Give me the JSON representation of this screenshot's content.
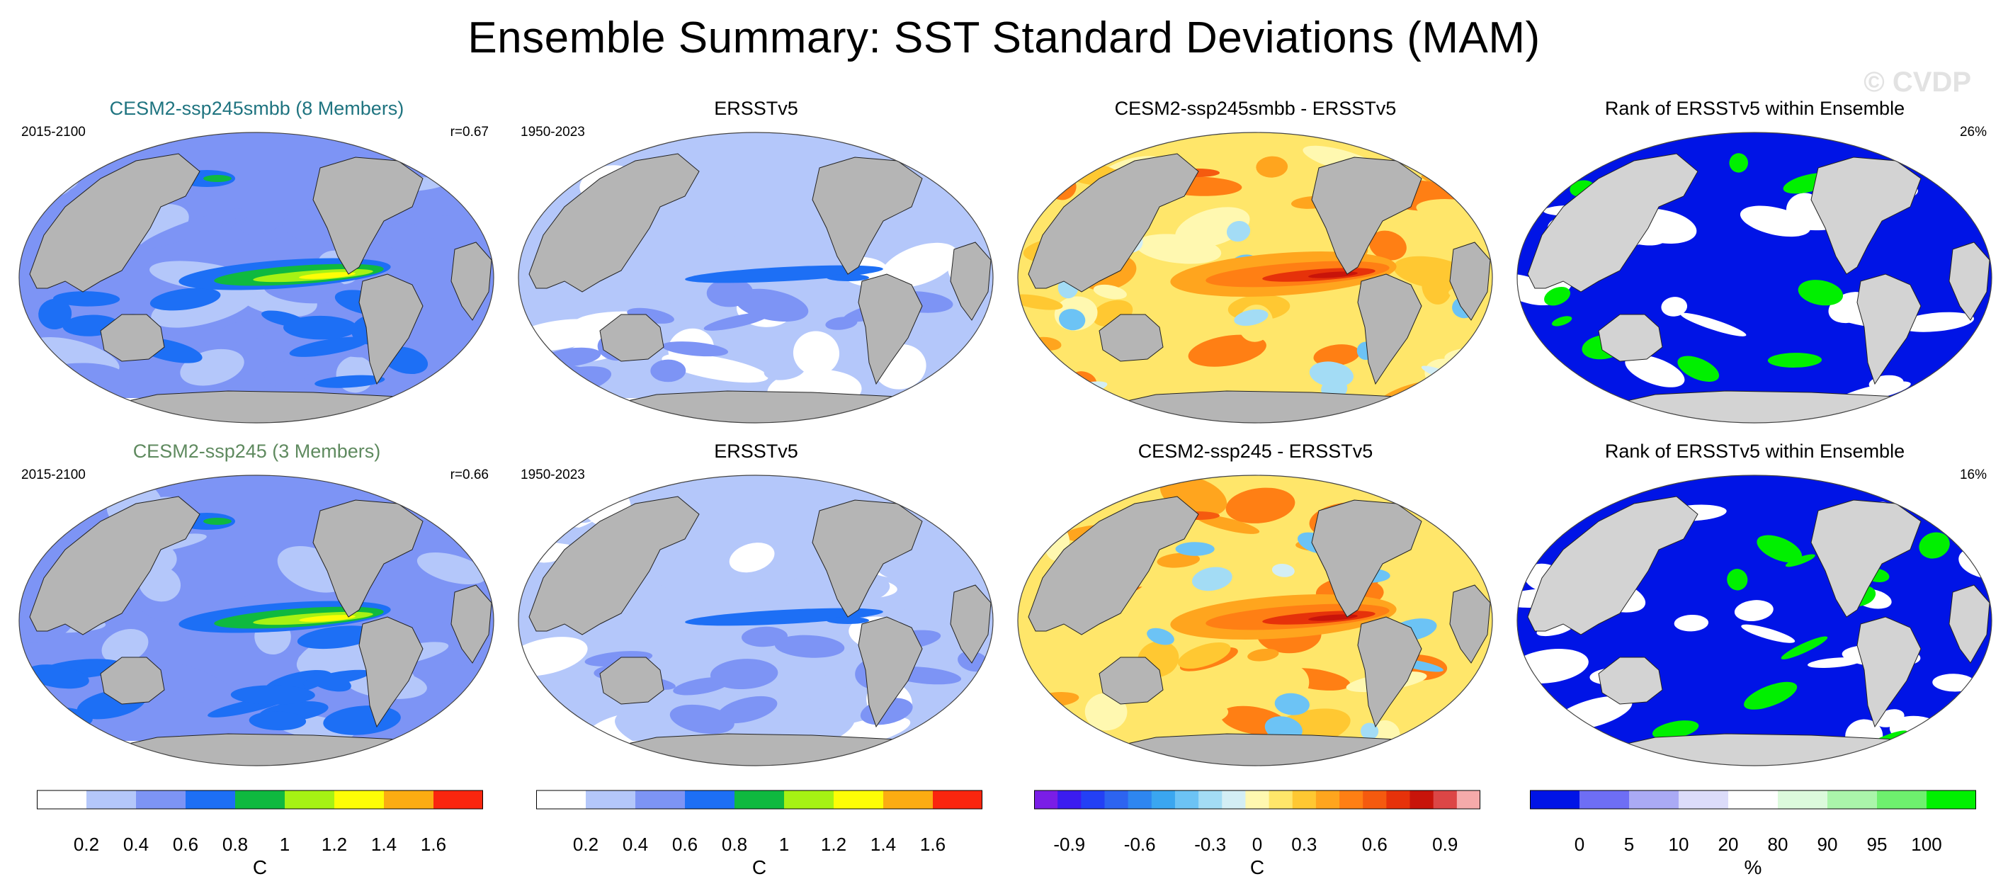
{
  "title": "Ensemble Summary: SST Standard Deviations (MAM)",
  "watermark": "© CVDP",
  "colors": {
    "land": "#b5b5b5",
    "land_light": "#d3d3d3",
    "ocean_default": "#7d94f5",
    "ensemble1_title": "#1f7480",
    "ensemble2_title": "#5f8a5f"
  },
  "rows": [
    {
      "panels": [
        {
          "title": "CESM2-ssp245smbb (8 Members)",
          "left": "2015-2100",
          "right": "r=0.67",
          "kind": "std",
          "variant": "model"
        },
        {
          "title": "ERSSTv5",
          "left": "1950-2023",
          "right": "",
          "kind": "std",
          "variant": "obs"
        },
        {
          "title": "CESM2-ssp245smbb - ERSSTv5",
          "left": "",
          "right": "",
          "kind": "diff",
          "variant": "diff"
        },
        {
          "title": "Rank of ERSSTv5 within Ensemble",
          "left": "",
          "right": "26%",
          "kind": "rank",
          "variant": "rank"
        }
      ]
    },
    {
      "panels": [
        {
          "title": "CESM2-ssp245 (3 Members)",
          "left": "2015-2100",
          "right": "r=0.66",
          "kind": "std",
          "variant": "model"
        },
        {
          "title": "ERSSTv5",
          "left": "1950-2023",
          "right": "",
          "kind": "std",
          "variant": "obs"
        },
        {
          "title": "CESM2-ssp245 - ERSSTv5",
          "left": "",
          "right": "",
          "kind": "diff",
          "variant": "diff"
        },
        {
          "title": "Rank of ERSSTv5 within Ensemble",
          "left": "",
          "right": "16%",
          "kind": "rank",
          "variant": "rank"
        }
      ]
    }
  ],
  "colorbars": [
    {
      "unit": "C",
      "labels": [
        "0.2",
        "0.4",
        "0.6",
        "0.8",
        "1",
        "1.2",
        "1.4",
        "1.6"
      ],
      "colors": [
        "#ffffff",
        "#b4c7fa",
        "#7d94f5",
        "#1d6ff5",
        "#0fb93f",
        "#a6f214",
        "#fdfd06",
        "#fbac12",
        "#fa260e"
      ]
    },
    {
      "unit": "C",
      "labels": [
        "0.2",
        "0.4",
        "0.6",
        "0.8",
        "1",
        "1.2",
        "1.4",
        "1.6"
      ],
      "colors": [
        "#ffffff",
        "#b4c7fa",
        "#7d94f5",
        "#1d6ff5",
        "#0fb93f",
        "#a6f214",
        "#fdfd06",
        "#fbac12",
        "#fa260e"
      ]
    },
    {
      "unit": "C",
      "labels": [
        "-0.9",
        "-0.6",
        "-0.3",
        "0",
        "0.3",
        "0.6",
        "0.9"
      ],
      "colors": [
        "#7a1ee6",
        "#3b1cf0",
        "#2340f5",
        "#2d64f0",
        "#2e86f0",
        "#3aa6f0",
        "#6cc3f5",
        "#a3dcf5",
        "#d3eef5",
        "#fff8b0",
        "#ffe66a",
        "#ffc832",
        "#ffa51e",
        "#ff7f14",
        "#f55a0f",
        "#e6320a",
        "#c8140a",
        "#dc4646",
        "#f5aaaa"
      ],
      "label_slots": [
        1.5,
        4.5,
        7.5,
        9.5,
        11.5,
        14.5,
        17.5
      ]
    },
    {
      "unit": "%",
      "labels": [
        "0",
        "5",
        "10",
        "20",
        "80",
        "90",
        "95",
        "100"
      ],
      "colors": [
        "#0014e6",
        "#6e6ef5",
        "#aaaaf5",
        "#dcdcfa",
        "#ffffff",
        "#dcfadc",
        "#aaf5aa",
        "#6ef06e",
        "#00f000"
      ],
      "label_slots": [
        1,
        2,
        3,
        4,
        5,
        6,
        7,
        8
      ]
    }
  ],
  "chart_data": {
    "type": "heatmap",
    "title": "Ensemble Summary: SST Standard Deviations (MAM)",
    "variable": "SST standard deviation",
    "season": "MAM",
    "units_std": "C",
    "units_rank": "%",
    "panels": [
      {
        "row": 1,
        "col": 1,
        "title": "CESM2-ssp245smbb (8 Members)",
        "period": "2015-2100",
        "pattern_correlation": 0.67
      },
      {
        "row": 1,
        "col": 2,
        "title": "ERSSTv5",
        "period": "1950-2023"
      },
      {
        "row": 1,
        "col": 3,
        "title": "CESM2-ssp245smbb - ERSSTv5"
      },
      {
        "row": 1,
        "col": 4,
        "title": "Rank of ERSSTv5 within Ensemble",
        "percent": 26
      },
      {
        "row": 2,
        "col": 1,
        "title": "CESM2-ssp245 (3 Members)",
        "period": "2015-2100",
        "pattern_correlation": 0.66
      },
      {
        "row": 2,
        "col": 2,
        "title": "ERSSTv5",
        "period": "1950-2023"
      },
      {
        "row": 2,
        "col": 3,
        "title": "CESM2-ssp245 - ERSSTv5"
      },
      {
        "row": 2,
        "col": 4,
        "title": "Rank of ERSSTv5 within Ensemble",
        "percent": 16
      }
    ],
    "std_levels": [
      0.2,
      0.4,
      0.6,
      0.8,
      1,
      1.2,
      1.4,
      1.6
    ],
    "diff_levels": [
      -0.9,
      -0.6,
      -0.3,
      0,
      0.3,
      0.6,
      0.9
    ],
    "rank_levels": [
      0,
      5,
      10,
      20,
      80,
      90,
      95,
      100
    ]
  }
}
